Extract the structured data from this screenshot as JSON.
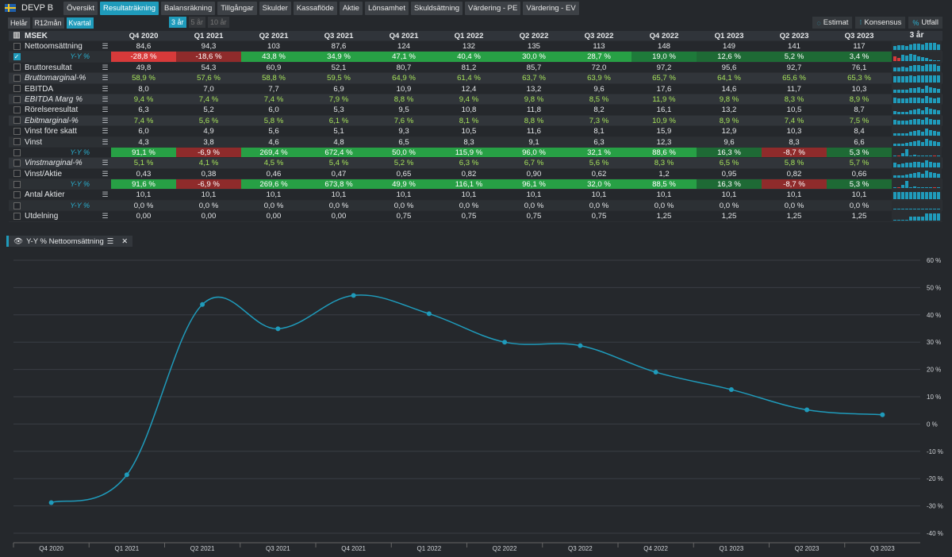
{
  "company": "DEVP B",
  "tabs": [
    "Översikt",
    "Resultaträkning",
    "Balansräkning",
    "Tillgångar",
    "Skulder",
    "Kassaflöde",
    "Aktie",
    "Lönsamhet",
    "Skuldsättning",
    "Värdering - PE",
    "Värdering - EV"
  ],
  "active_tab": 1,
  "period_buttons": [
    "Helår",
    "R12mån",
    "Kvartal"
  ],
  "year_buttons": [
    "3 år",
    "5 år",
    "10 år"
  ],
  "right_buttons": [
    {
      "icon": "estimate-icon",
      "label": "Estimat"
    },
    {
      "icon": "consensus-icon",
      "label": "Konsensus"
    },
    {
      "icon": "percent-icon",
      "label": "Utfall"
    }
  ],
  "table": {
    "unit": "MSEK",
    "columns": [
      "Q4 2020",
      "Q1 2021",
      "Q2 2021",
      "Q3 2021",
      "Q4 2021",
      "Q1 2022",
      "Q2 2022",
      "Q3 2022",
      "Q4 2022",
      "Q1 2023",
      "Q2 2023",
      "Q3 2023"
    ],
    "spark_header": "3 år",
    "rows": [
      {
        "label": "Nettoomsättning",
        "style": "n",
        "checked": false,
        "values": [
          "84,6",
          "94,3",
          "103",
          "87,6",
          "124",
          "132",
          "135",
          "113",
          "148",
          "149",
          "141",
          "117"
        ]
      },
      {
        "label": "Y-Y %",
        "style": "yy",
        "checked": true,
        "values": [
          "-28,8 %",
          "-18,6 %",
          "43,8 %",
          "34,9 %",
          "47,1 %",
          "40,4 %",
          "30,0 %",
          "28,7 %",
          "19,0 %",
          "12,6 %",
          "5,2 %",
          "3,4 %"
        ],
        "colors": [
          "#d73a3a",
          "#8f2b2b",
          "#27a045",
          "#27a045",
          "#27a045",
          "#27a045",
          "#27a045",
          "#27a045",
          "#1e7a3a",
          "#1e6a35",
          "#1e6a35",
          "#1e6a35"
        ]
      },
      {
        "label": "Bruttoresultat",
        "style": "n",
        "checked": false,
        "values": [
          "49,8",
          "54,3",
          "60,9",
          "52,1",
          "80,7",
          "81,2",
          "85,7",
          "72,0",
          "97,2",
          "95,6",
          "92,7",
          "76,1"
        ]
      },
      {
        "label": "Bruttomarginal-%",
        "style": "it",
        "checked": false,
        "green": true,
        "values": [
          "58,9 %",
          "57,6 %",
          "58,8 %",
          "59,5 %",
          "64,9 %",
          "61,4 %",
          "63,7 %",
          "63,9 %",
          "65,7 %",
          "64,1 %",
          "65,6 %",
          "65,3 %"
        ]
      },
      {
        "label": "EBITDA",
        "style": "n",
        "checked": false,
        "values": [
          "8,0",
          "7,0",
          "7,7",
          "6,9",
          "10,9",
          "12,4",
          "13,2",
          "9,6",
          "17,6",
          "14,6",
          "11,7",
          "10,3"
        ]
      },
      {
        "label": "EBITDA Marg %",
        "style": "it",
        "checked": false,
        "green": true,
        "values": [
          "9,4 %",
          "7,4 %",
          "7,4 %",
          "7,9 %",
          "8,8 %",
          "9,4 %",
          "9,8 %",
          "8,5 %",
          "11,9 %",
          "9,8 %",
          "8,3 %",
          "8,9 %"
        ]
      },
      {
        "label": "Rörelseresultat",
        "style": "n",
        "checked": false,
        "values": [
          "6,3",
          "5,2",
          "6,0",
          "5,3",
          "9,5",
          "10,8",
          "11,8",
          "8,2",
          "16,1",
          "13,2",
          "10,5",
          "8,7"
        ]
      },
      {
        "label": "Ebitmarginal-%",
        "style": "it",
        "checked": false,
        "green": true,
        "values": [
          "7,4 %",
          "5,6 %",
          "5,8 %",
          "6,1 %",
          "7,6 %",
          "8,1 %",
          "8,8 %",
          "7,3 %",
          "10,9 %",
          "8,9 %",
          "7,4 %",
          "7,5 %"
        ]
      },
      {
        "label": "Vinst före skatt",
        "style": "n",
        "checked": false,
        "values": [
          "6,0",
          "4,9",
          "5,6",
          "5,1",
          "9,3",
          "10,5",
          "11,6",
          "8,1",
          "15,9",
          "12,9",
          "10,3",
          "8,4"
        ]
      },
      {
        "label": "Vinst",
        "style": "n",
        "checked": false,
        "values": [
          "4,3",
          "3,8",
          "4,6",
          "4,8",
          "6,5",
          "8,3",
          "9,1",
          "6,3",
          "12,3",
          "9,6",
          "8,3",
          "6,6"
        ]
      },
      {
        "label": "Y-Y %",
        "style": "yy",
        "checked": false,
        "values": [
          "91,1 %",
          "-6,9 %",
          "269,4 %",
          "672,4 %",
          "50,0 %",
          "115,9 %",
          "96,0 %",
          "32,1 %",
          "88,6 %",
          "16,3 %",
          "-8,7 %",
          "5,3 %"
        ],
        "colors": [
          "#27a045",
          "#8f2b2b",
          "#27a045",
          "#27a045",
          "#27a045",
          "#27a045",
          "#27a045",
          "#27a045",
          "#27a045",
          "#1e6a35",
          "#8f2b2b",
          "#1e6a35"
        ]
      },
      {
        "label": "Vinstmarginal-%",
        "style": "it",
        "checked": false,
        "green": true,
        "values": [
          "5,1 %",
          "4,1 %",
          "4,5 %",
          "5,4 %",
          "5,2 %",
          "6,3 %",
          "6,7 %",
          "5,6 %",
          "8,3 %",
          "6,5 %",
          "5,8 %",
          "5,7 %"
        ]
      },
      {
        "label": "Vinst/Aktie",
        "style": "n",
        "checked": false,
        "values": [
          "0,43",
          "0,38",
          "0,46",
          "0,47",
          "0,65",
          "0,82",
          "0,90",
          "0,62",
          "1,2",
          "0,95",
          "0,82",
          "0,66"
        ]
      },
      {
        "label": "Y-Y %",
        "style": "yy",
        "checked": false,
        "values": [
          "91,6 %",
          "-6,9 %",
          "269,6 %",
          "673,8 %",
          "49,9 %",
          "116,1 %",
          "96,1 %",
          "32,0 %",
          "88,5 %",
          "16,3 %",
          "-8,7 %",
          "5,3 %"
        ],
        "colors": [
          "#27a045",
          "#8f2b2b",
          "#27a045",
          "#27a045",
          "#27a045",
          "#27a045",
          "#27a045",
          "#27a045",
          "#27a045",
          "#1e6a35",
          "#8f2b2b",
          "#1e6a35"
        ]
      },
      {
        "label": "Antal Aktier",
        "style": "n",
        "checked": false,
        "values": [
          "10,1",
          "10,1",
          "10,1",
          "10,1",
          "10,1",
          "10,1",
          "10,1",
          "10,1",
          "10,1",
          "10,1",
          "10,1",
          "10,1"
        ]
      },
      {
        "label": "Y-Y %",
        "style": "yy",
        "checked": false,
        "values": [
          "0,0 %",
          "0,0 %",
          "0,0 %",
          "0,0 %",
          "0,0 %",
          "0,0 %",
          "0,0 %",
          "0,0 %",
          "0,0 %",
          "0,0 %",
          "0,0 %",
          "0,0 %"
        ]
      },
      {
        "label": "Utdelning",
        "style": "n",
        "checked": false,
        "values": [
          "0,00",
          "0,00",
          "0,00",
          "0,00",
          "0,75",
          "0,75",
          "0,75",
          "0,75",
          "1,25",
          "1,25",
          "1,25",
          "1,25"
        ]
      }
    ]
  },
  "chart_tag": "Y-Y % Nettoomsättning",
  "chart_data": {
    "type": "line",
    "categories": [
      "Q4 2020",
      "Q1 2021",
      "Q2 2021",
      "Q3 2021",
      "Q4 2021",
      "Q1 2022",
      "Q2 2022",
      "Q3 2022",
      "Q4 2022",
      "Q1 2023",
      "Q2 2023",
      "Q3 2023"
    ],
    "series": [
      {
        "values": [
          -28.8,
          -18.6,
          43.8,
          34.9,
          47.1,
          40.4,
          30.0,
          28.7,
          19.0,
          12.6,
          5.2,
          3.4
        ]
      }
    ],
    "ylim": [
      -40,
      60
    ],
    "yticks": [
      60,
      50,
      40,
      30,
      20,
      10,
      0,
      -10,
      -20,
      -30,
      -40
    ],
    "ytick_labels": [
      "60 %",
      "50 %",
      "40 %",
      "30 %",
      "20 %",
      "10 %",
      "0 %",
      "-10 %",
      "-20 %",
      "-30 %",
      "-40 %"
    ],
    "grid": true,
    "line_color": "#1f9bbb"
  }
}
